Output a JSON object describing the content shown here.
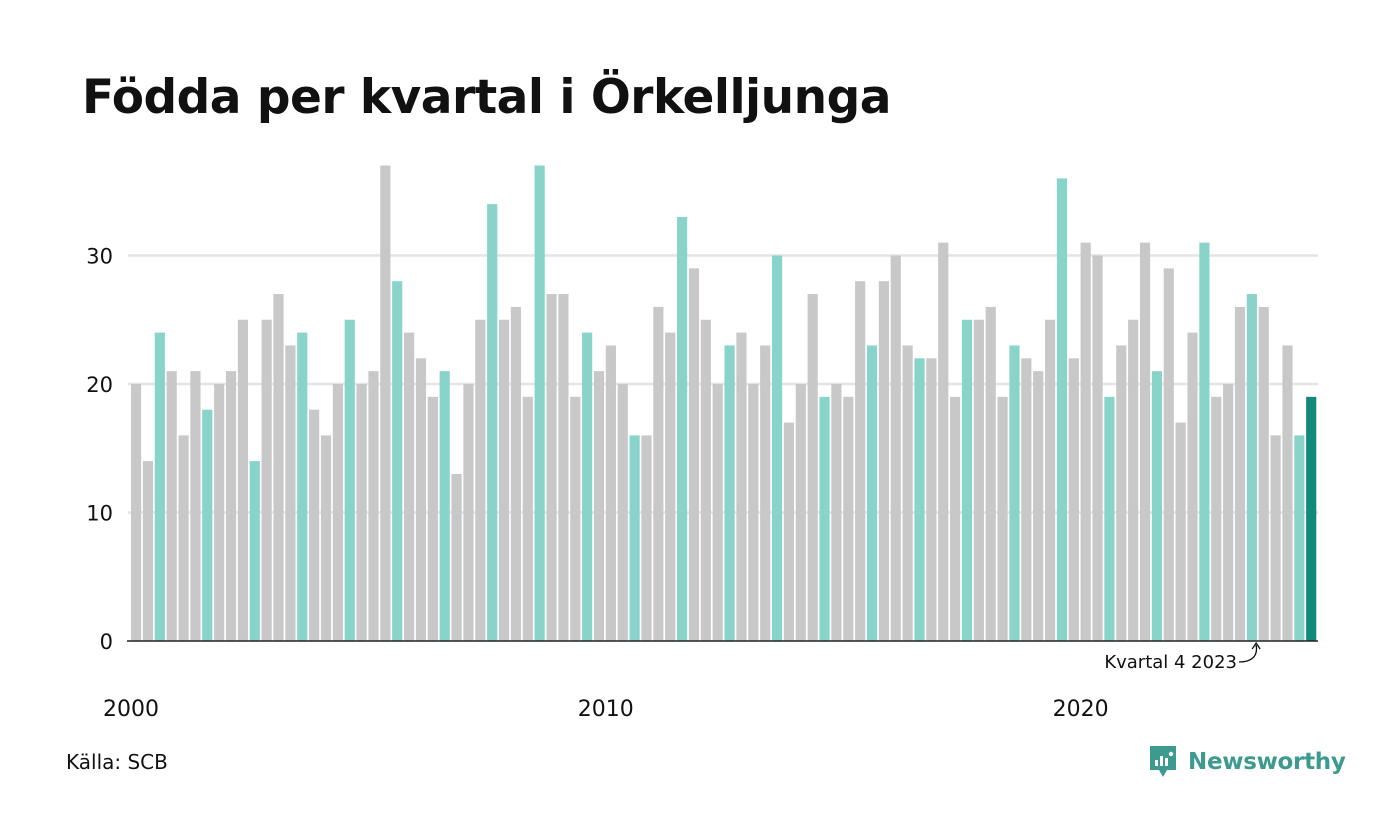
{
  "title": "Födda per kvartal i Örkelljunga",
  "source": "Källa: SCB",
  "brand": "Newsworthy",
  "colors": {
    "bar": "#c8c8c8",
    "highlight_quarter": "#88d3ca",
    "latest": "#12897b",
    "grid": "#e4e4e4",
    "axis": "#222222",
    "brand": "#3d9a8e"
  },
  "chart_data": {
    "type": "bar",
    "start_year": 2000,
    "quarters_per_year": 4,
    "highlighted_quarter": 2,
    "values": [
      20,
      14,
      24,
      21,
      16,
      21,
      18,
      20,
      21,
      25,
      14,
      25,
      27,
      23,
      24,
      18,
      16,
      20,
      25,
      20,
      21,
      37,
      28,
      24,
      22,
      19,
      21,
      13,
      20,
      25,
      34,
      25,
      26,
      19,
      37,
      27,
      27,
      19,
      24,
      21,
      23,
      20,
      16,
      16,
      26,
      24,
      33,
      29,
      25,
      20,
      23,
      24,
      20,
      23,
      30,
      17,
      20,
      27,
      19,
      20,
      19,
      28,
      23,
      28,
      30,
      23,
      22,
      22,
      31,
      19,
      25,
      25,
      26,
      19,
      23,
      22,
      21,
      25,
      36,
      22,
      31,
      30,
      19,
      23,
      25,
      31,
      21,
      29,
      17,
      24,
      31,
      19,
      20,
      26,
      27,
      26,
      16,
      23,
      16,
      19
    ],
    "ylim": [
      0,
      37
    ],
    "yticks": [
      0,
      10,
      20,
      30
    ],
    "xtick_labels": [
      "2000",
      "2010",
      "2020"
    ],
    "xtick_years": [
      2000,
      2010,
      2020
    ],
    "annotation": "Kvartal 4 2023",
    "grid": true
  }
}
